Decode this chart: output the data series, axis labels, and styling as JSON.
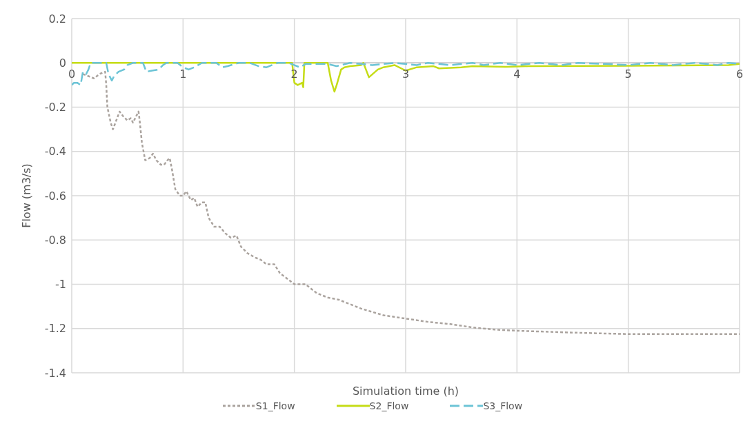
{
  "chart_data": {
    "type": "line",
    "xlabel": "Simulation time (h)",
    "ylabel": "Flow (m3/s)",
    "xlim": [
      0,
      6
    ],
    "xticks": [
      0,
      1,
      2,
      3,
      4,
      5,
      6
    ],
    "ylim": [
      -1.4,
      0.2
    ],
    "yticks": [
      -1.4,
      -1.2,
      -1,
      -0.8,
      -0.6,
      -0.4,
      -0.2,
      0,
      0.2
    ],
    "grid": true,
    "legend": "bottom",
    "marker": "none",
    "series": [
      {
        "name": "S1_Flow",
        "color": "#aaa39e",
        "line_style": "dotted",
        "x": [
          0.1,
          0.15,
          0.2,
          0.25,
          0.3,
          0.31,
          0.32,
          0.35,
          0.37,
          0.4,
          0.43,
          0.46,
          0.5,
          0.53,
          0.55,
          0.58,
          0.6,
          0.61,
          0.63,
          0.66,
          0.7,
          0.73,
          0.76,
          0.8,
          0.83,
          0.86,
          0.88,
          0.9,
          0.93,
          0.97,
          1.0,
          1.03,
          1.07,
          1.1,
          1.13,
          1.17,
          1.2,
          1.23,
          1.28,
          1.33,
          1.38,
          1.43,
          1.48,
          1.52,
          1.58,
          1.65,
          1.7,
          1.75,
          1.82,
          1.87,
          1.95,
          2.0,
          2.1,
          2.2,
          2.3,
          2.4,
          2.5,
          2.6,
          2.8,
          3.0,
          3.2,
          3.4,
          3.6,
          3.8,
          4.0,
          4.3,
          4.6,
          5.0,
          5.5,
          6.0
        ],
        "values": [
          -0.05,
          -0.06,
          -0.07,
          -0.05,
          -0.04,
          -0.1,
          -0.2,
          -0.27,
          -0.3,
          -0.26,
          -0.22,
          -0.24,
          -0.26,
          -0.25,
          -0.27,
          -0.24,
          -0.22,
          -0.26,
          -0.36,
          -0.44,
          -0.43,
          -0.41,
          -0.44,
          -0.46,
          -0.46,
          -0.44,
          -0.43,
          -0.48,
          -0.57,
          -0.6,
          -0.6,
          -0.58,
          -0.62,
          -0.61,
          -0.65,
          -0.63,
          -0.63,
          -0.7,
          -0.74,
          -0.74,
          -0.77,
          -0.79,
          -0.78,
          -0.83,
          -0.86,
          -0.88,
          -0.89,
          -0.91,
          -0.91,
          -0.95,
          -0.98,
          -1.0,
          -1.0,
          -1.04,
          -1.06,
          -1.07,
          -1.09,
          -1.11,
          -1.14,
          -1.155,
          -1.17,
          -1.18,
          -1.195,
          -1.205,
          -1.21,
          -1.215,
          -1.22,
          -1.225,
          -1.225,
          -1.225
        ]
      },
      {
        "name": "S2_Flow",
        "color": "#c5dc16",
        "line_style": "solid",
        "x": [
          0,
          1.98,
          2.0,
          2.03,
          2.07,
          2.08,
          2.09,
          2.3,
          2.33,
          2.36,
          2.38,
          2.42,
          2.45,
          2.5,
          2.6,
          2.62,
          2.67,
          2.75,
          2.8,
          2.9,
          3.0,
          3.1,
          3.25,
          3.3,
          3.5,
          3.6,
          3.9,
          4.1,
          5.0,
          5.9,
          6.0
        ],
        "values": [
          0,
          0,
          -0.09,
          -0.1,
          -0.09,
          -0.11,
          0,
          0,
          -0.08,
          -0.13,
          -0.1,
          -0.03,
          -0.02,
          -0.015,
          -0.01,
          0,
          -0.065,
          -0.03,
          -0.02,
          -0.01,
          -0.035,
          -0.02,
          -0.015,
          -0.025,
          -0.02,
          -0.015,
          -0.018,
          -0.015,
          -0.013,
          -0.01,
          -0.005
        ]
      },
      {
        "name": "S3_Flow",
        "color": "#6cc4d6",
        "line_style": "dashed",
        "x": [
          0,
          0.02,
          0.05,
          0.08,
          0.1,
          0.13,
          0.15,
          0.17,
          0.31,
          0.33,
          0.36,
          0.38,
          0.42,
          0.47,
          0.5,
          0.55,
          0.64,
          0.67,
          0.72,
          0.78,
          0.82,
          0.85,
          0.95,
          1.0,
          1.05,
          1.1,
          1.17,
          1.3,
          1.35,
          1.4,
          1.5,
          1.6,
          1.68,
          1.75,
          1.8,
          1.85,
          1.95,
          2.05,
          2.1,
          2.3,
          2.38,
          2.5,
          2.7,
          2.8,
          2.9,
          3.1,
          3.2,
          3.4,
          3.6,
          3.7,
          3.85,
          4.0,
          4.2,
          4.4,
          4.55,
          4.8,
          5.0,
          5.2,
          5.4,
          5.6,
          5.8,
          5.9,
          6.0
        ],
        "values": [
          -0.1,
          -0.09,
          -0.09,
          -0.1,
          -0.04,
          -0.05,
          -0.03,
          0,
          0,
          -0.05,
          -0.08,
          -0.06,
          -0.04,
          -0.03,
          -0.01,
          0,
          0,
          -0.04,
          -0.035,
          -0.03,
          -0.01,
          0,
          0,
          -0.02,
          -0.03,
          -0.02,
          0,
          0,
          -0.02,
          -0.015,
          0,
          0,
          -0.015,
          -0.02,
          -0.01,
          0,
          0,
          -0.02,
          -0.005,
          -0.005,
          -0.015,
          0,
          -0.01,
          -0.005,
          0,
          -0.01,
          0,
          -0.01,
          0,
          -0.01,
          0,
          -0.01,
          0,
          -0.01,
          0,
          -0.005,
          -0.01,
          0,
          -0.01,
          0,
          -0.01,
          0,
          -0.005
        ]
      }
    ]
  }
}
